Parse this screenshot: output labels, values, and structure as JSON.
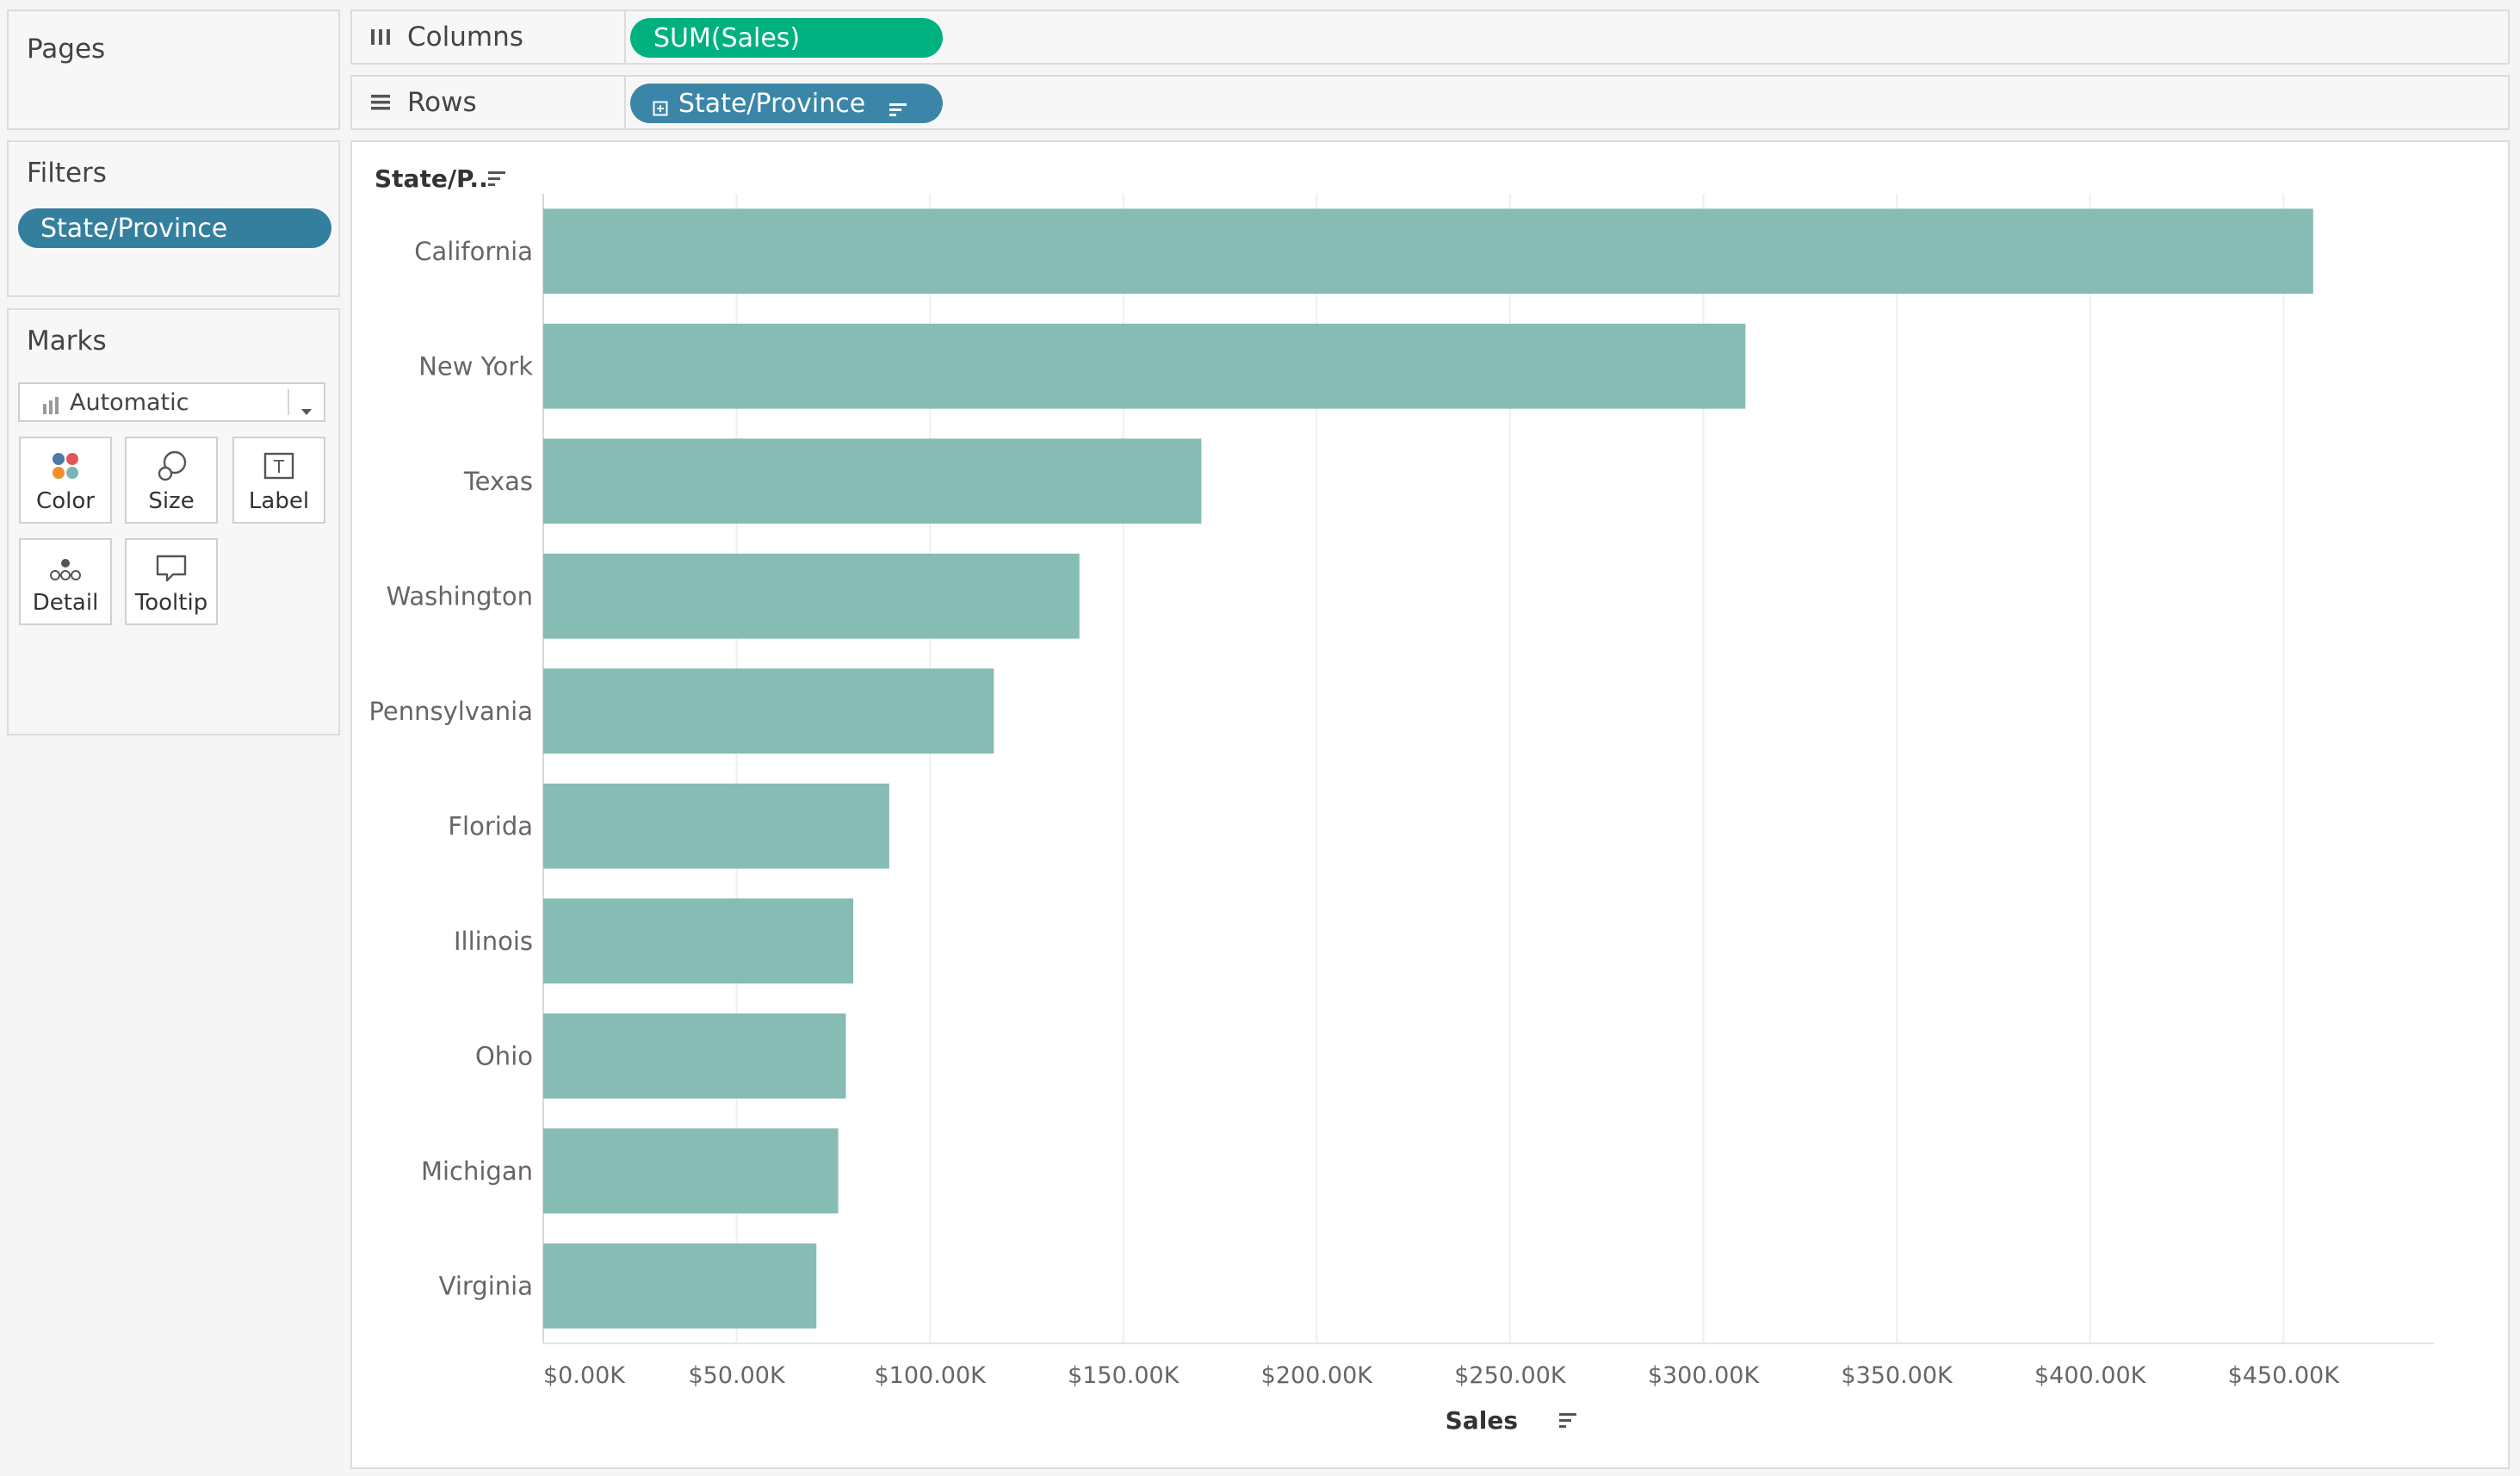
{
  "side": {
    "pages_title": "Pages",
    "filters_title": "Filters",
    "filter_pill": "State/Province",
    "marks_title": "Marks",
    "marks_type": "Automatic",
    "marks_buttons": [
      {
        "label": "Color",
        "icon": "color-dots-icon"
      },
      {
        "label": "Size",
        "icon": "size-circles-icon"
      },
      {
        "label": "Label",
        "icon": "text-label-icon"
      },
      {
        "label": "Detail",
        "icon": "detail-dots-icon"
      },
      {
        "label": "Tooltip",
        "icon": "tooltip-bubble-icon"
      }
    ]
  },
  "shelves": {
    "columns_label": "Columns",
    "columns_pill": "SUM(Sales)",
    "rows_label": "Rows",
    "rows_pill": "State/Province"
  },
  "colors": {
    "bar": "#86bcb4",
    "green_pill": "#00b180",
    "blue_pill": "#3b86a8"
  },
  "chart_data": {
    "type": "bar",
    "orientation": "horizontal",
    "row_header": "State/P..",
    "xlabel": "Sales",
    "categories": [
      "California",
      "New York",
      "Texas",
      "Washington",
      "Pennsylvania",
      "Florida",
      "Illinois",
      "Ohio",
      "Michigan",
      "Virginia"
    ],
    "values": [
      457688,
      310876,
      170188,
      138641,
      116512,
      89474,
      80166,
      78258,
      76270,
      70637
    ],
    "xlim": [
      0,
      480000
    ],
    "xticks": [
      0,
      50000,
      100000,
      150000,
      200000,
      250000,
      300000,
      350000,
      400000,
      450000
    ],
    "xtick_labels": [
      "$0.00K",
      "$50.00K",
      "$100.00K",
      "$150.00K",
      "$200.00K",
      "$250.00K",
      "$300.00K",
      "$350.00K",
      "$400.00K",
      "$450.00K"
    ],
    "grid": true
  }
}
